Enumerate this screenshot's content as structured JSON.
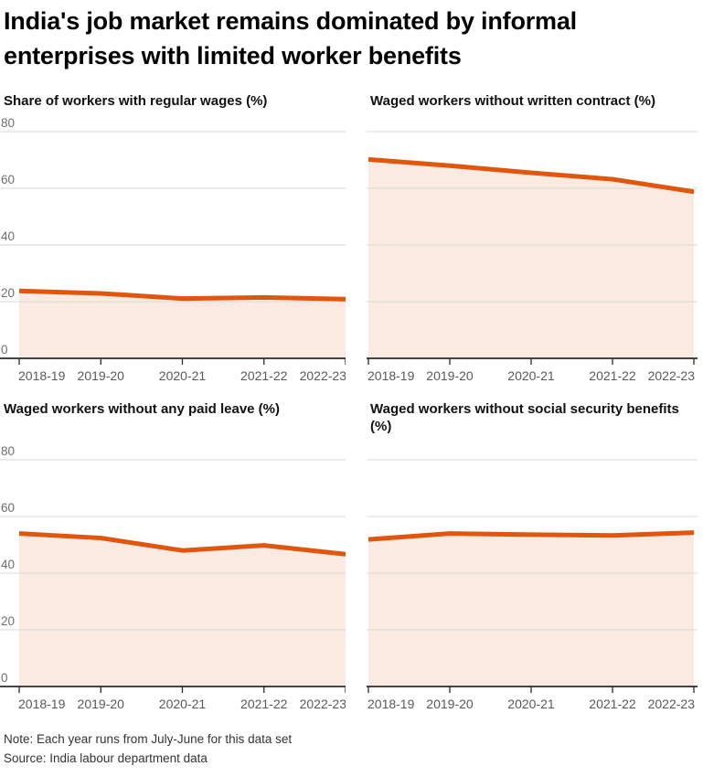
{
  "header": {
    "title_lines": [
      "India's job market remains dominated by informal",
      "enterprises with limited worker benefits"
    ]
  },
  "colors": {
    "accent_line": "#e0560d",
    "area_fill": "rgba(224,86,13,0.125)",
    "gridline": "#d9d9d9",
    "axis": "#2b2b2b",
    "y_label": "#6e6e6e",
    "x_label": "#595959"
  },
  "chart_data": [
    {
      "type": "area",
      "title": "Share of workers with regular wages (%)",
      "categories": [
        "2018-19",
        "2019-20",
        "2020-21",
        "2021-22",
        "2022-23"
      ],
      "values": [
        23.8,
        22.9,
        21.1,
        21.5,
        20.9
      ],
      "ylim": [
        0,
        80
      ],
      "yticks": [
        0,
        20,
        40,
        60,
        80
      ],
      "show_y_axis_labels": true,
      "grid": "horizontal",
      "legend": "none"
    },
    {
      "type": "area",
      "title": "Waged workers without written contract (%)",
      "categories": [
        "2018-19",
        "2019-20",
        "2020-21",
        "2021-22",
        "2022-23"
      ],
      "values": [
        70.2,
        68.0,
        65.5,
        63.2,
        58.8
      ],
      "ylim": [
        0,
        80
      ],
      "yticks": [
        0,
        20,
        40,
        60,
        80
      ],
      "show_y_axis_labels": false,
      "grid": "horizontal",
      "legend": "none"
    },
    {
      "type": "area",
      "title": "Waged workers without any paid leave (%)",
      "categories": [
        "2018-19",
        "2019-20",
        "2020-21",
        "2021-22",
        "2022-23"
      ],
      "values": [
        54.0,
        52.4,
        48.0,
        49.8,
        46.7
      ],
      "ylim": [
        0,
        80
      ],
      "yticks": [
        0,
        20,
        40,
        60,
        80
      ],
      "show_y_axis_labels": true,
      "grid": "horizontal",
      "legend": "none"
    },
    {
      "type": "area",
      "title": "Waged workers without social security benefits (%)",
      "categories": [
        "2018-19",
        "2019-20",
        "2020-21",
        "2021-22",
        "2022-23"
      ],
      "values": [
        51.9,
        54.0,
        53.6,
        53.3,
        54.3
      ],
      "ylim": [
        0,
        80
      ],
      "yticks": [
        0,
        20,
        40,
        60,
        80
      ],
      "show_y_axis_labels": false,
      "grid": "horizontal",
      "legend": "none"
    }
  ],
  "footer": {
    "note": "Note: Each year runs from July-June for this data set",
    "source": "Source: India labour department data"
  }
}
